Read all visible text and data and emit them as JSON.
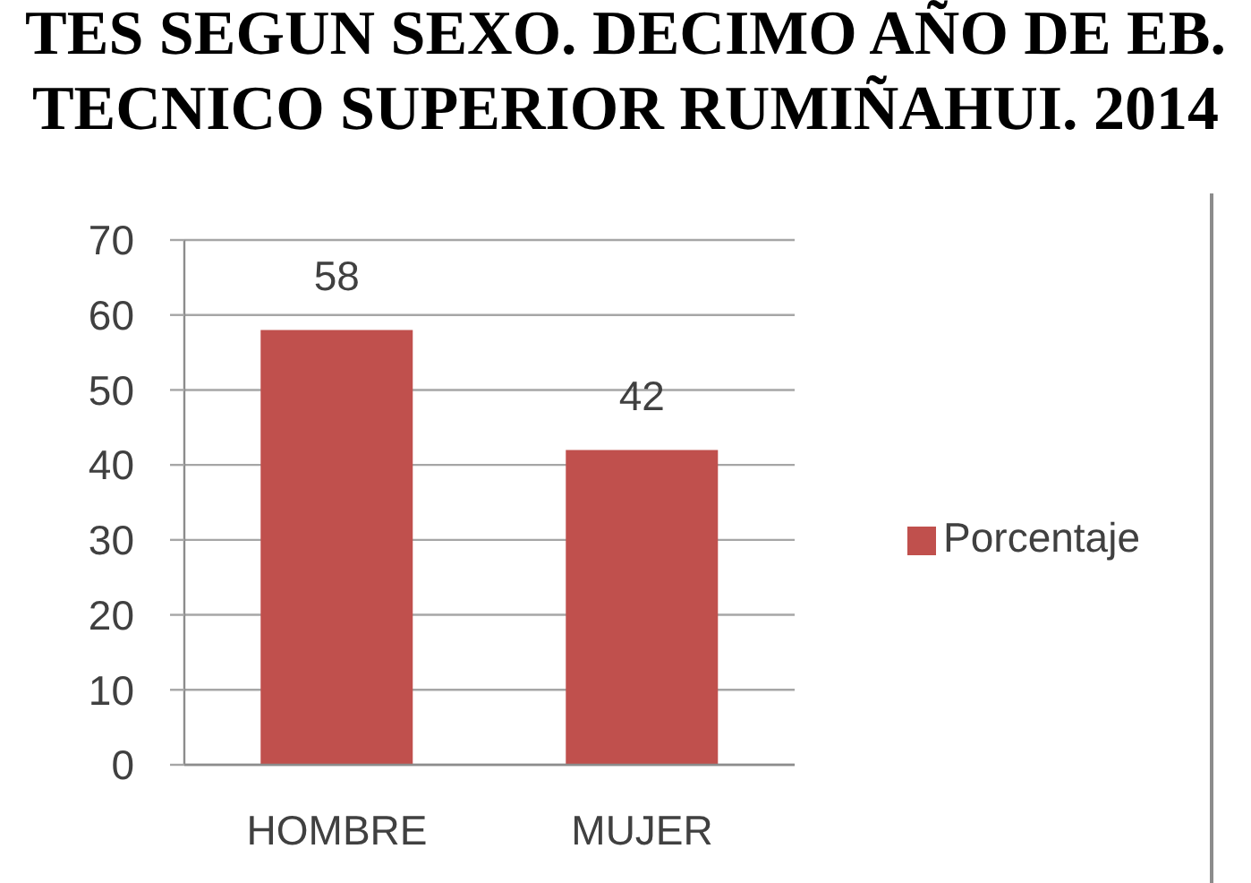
{
  "chart_data": {
    "type": "bar",
    "title": "TES SEGUN SEXO. DECIMO AÑO DE EB.\nTECNICO SUPERIOR RUMIÑAHUI. 2014",
    "categories": [
      "HOMBRE",
      "MUJER"
    ],
    "series": [
      {
        "name": "Porcentaje",
        "color": "#c0504d",
        "values": [
          58,
          42
        ]
      }
    ],
    "ylim": [
      0,
      70
    ],
    "yticks": [
      0,
      10,
      20,
      30,
      40,
      50,
      60,
      70
    ],
    "grid": "y",
    "legend": "right",
    "data_labels": true
  }
}
